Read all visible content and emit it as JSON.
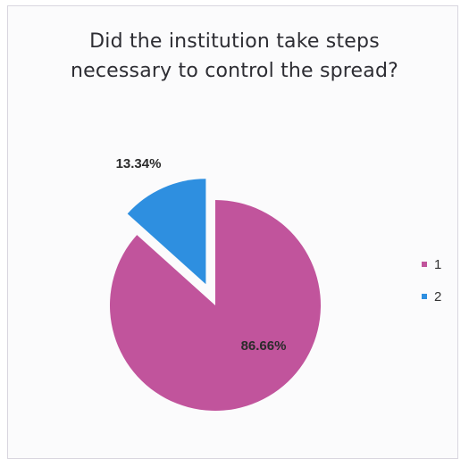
{
  "chart_data": {
    "type": "pie",
    "title": [
      "Did the institution take steps",
      "necessary to control the spread?"
    ],
    "categories": [
      "1",
      "2"
    ],
    "values": [
      86.66,
      13.34
    ],
    "value_labels": [
      "86.66%",
      "13.34%"
    ],
    "colors": [
      "#c1549c",
      "#2e8fe0"
    ],
    "legend": [
      "1",
      "2"
    ],
    "legend_placement": "right",
    "exploded_slice": "2"
  }
}
